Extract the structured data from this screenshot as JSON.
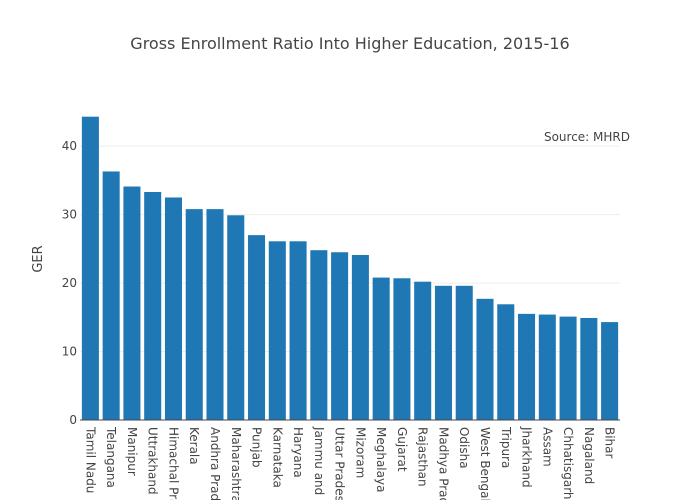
{
  "chart_data": {
    "type": "bar",
    "title": "Gross Enrollment Ratio Into Higher Education, 2015-16",
    "ylabel": "GER",
    "xlabel": "",
    "ylim": [
      0,
      44.4
    ],
    "yticks": [
      0,
      10,
      20,
      30,
      40
    ],
    "grid": true,
    "annotation": "Source: MHRD",
    "bar_color": "#1f77b4",
    "categories": [
      "Tamil Nadu",
      "Telangana",
      "Manipur",
      "Uttrakhand",
      "Himachal Pradesh",
      "Kerala",
      "Andhra Pradesh",
      "Maharashtra",
      "Punjab",
      "Karnataka",
      "Haryana",
      "Jammu and Kashmir",
      "Uttar Pradesh",
      "Mizoram",
      "Meghalaya",
      "Gujarat",
      "Rajasthan",
      "Madhya Pradesh",
      "Odisha",
      "West Bengal",
      "Tripura",
      "Jharkhand",
      "Assam",
      "Chhatisgarh",
      "Nagaland",
      "Bihar"
    ],
    "tick_labels": [
      "Tamil Nadu",
      "Telangana",
      "Manipur",
      "Uttrakhand",
      "Himachal Pra",
      "Kerala",
      "Andhra Prade",
      "Maharashtra",
      "Punjab",
      "Karnataka",
      "Haryana",
      "Jammu and K",
      "Uttar Pradesl",
      "Mizoram",
      "Meghalaya",
      "Gujarat",
      "Rajasthan",
      "Madhya Prad",
      "Odisha",
      "West Bengal",
      "Tripura",
      "Jharkhand",
      "Assam",
      "Chhatisgarh",
      "Nagaland",
      "Bihar"
    ],
    "values": [
      44.3,
      36.3,
      34.1,
      33.3,
      32.5,
      30.8,
      30.8,
      29.9,
      27.0,
      26.1,
      26.1,
      24.8,
      24.5,
      24.1,
      20.8,
      20.7,
      20.2,
      19.6,
      19.6,
      17.7,
      16.9,
      15.5,
      15.4,
      15.1,
      14.9,
      14.3
    ]
  }
}
